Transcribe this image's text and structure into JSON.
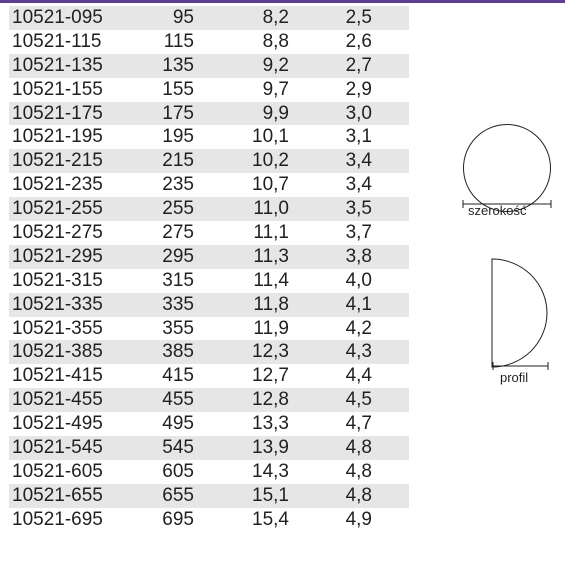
{
  "table": {
    "rows": [
      {
        "code": "10521-095",
        "size": "95",
        "a": "8,2",
        "b": "2,5"
      },
      {
        "code": "10521-115",
        "size": "115",
        "a": "8,8",
        "b": "2,6"
      },
      {
        "code": "10521-135",
        "size": "135",
        "a": "9,2",
        "b": "2,7"
      },
      {
        "code": "10521-155",
        "size": "155",
        "a": "9,7",
        "b": "2,9"
      },
      {
        "code": "10521-175",
        "size": "175",
        "a": "9,9",
        "b": "3,0"
      },
      {
        "code": "10521-195",
        "size": "195",
        "a": "10,1",
        "b": "3,1"
      },
      {
        "code": "10521-215",
        "size": "215",
        "a": "10,2",
        "b": "3,4"
      },
      {
        "code": "10521-235",
        "size": "235",
        "a": "10,7",
        "b": "3,4"
      },
      {
        "code": "10521-255",
        "size": "255",
        "a": "11,0",
        "b": "3,5"
      },
      {
        "code": "10521-275",
        "size": "275",
        "a": "11,1",
        "b": "3,7"
      },
      {
        "code": "10521-295",
        "size": "295",
        "a": "11,3",
        "b": "3,8"
      },
      {
        "code": "10521-315",
        "size": "315",
        "a": "11,4",
        "b": "4,0"
      },
      {
        "code": "10521-335",
        "size": "335",
        "a": "11,8",
        "b": "4,1"
      },
      {
        "code": "10521-355",
        "size": "355",
        "a": "11,9",
        "b": "4,2"
      },
      {
        "code": "10521-385",
        "size": "385",
        "a": "12,3",
        "b": "4,3"
      },
      {
        "code": "10521-415",
        "size": "415",
        "a": "12,7",
        "b": "4,4"
      },
      {
        "code": "10521-455",
        "size": "455",
        "a": "12,8",
        "b": "4,5"
      },
      {
        "code": "10521-495",
        "size": "495",
        "a": "13,3",
        "b": "4,7"
      },
      {
        "code": "10521-545",
        "size": "545",
        "a": "13,9",
        "b": "4,8"
      },
      {
        "code": "10521-605",
        "size": "605",
        "a": "14,3",
        "b": "4,8"
      },
      {
        "code": "10521-655",
        "size": "655",
        "a": "15,1",
        "b": "4,8"
      },
      {
        "code": "10521-695",
        "size": "695",
        "a": "15,4",
        "b": "4,9"
      }
    ]
  },
  "diagrams": {
    "width_label": "szerokość",
    "profile_label": "profil"
  },
  "colors": {
    "rule": "#5b3f91",
    "row_shade": "#e6e6e7",
    "text": "#231f20"
  }
}
